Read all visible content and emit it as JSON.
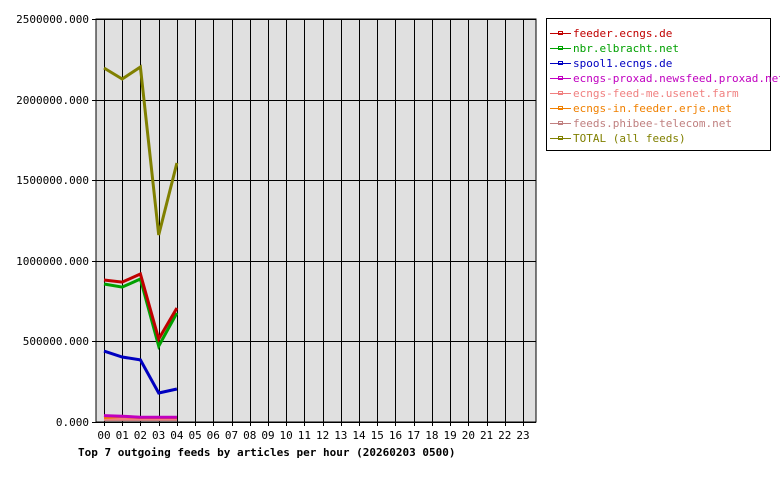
{
  "chart_data": {
    "type": "line",
    "title": "Top 7 outgoing feeds by articles per hour (20260203 0500)",
    "xlabel": "",
    "ylabel": "",
    "ylim": [
      0,
      2500000
    ],
    "grid": true,
    "legend_position": "right",
    "y_ticks": [
      "0.000",
      "500000.000",
      "1000000.000",
      "1500000.000",
      "2000000.000",
      "2500000.000"
    ],
    "y_tick_values": [
      0,
      500000,
      1000000,
      1500000,
      2000000,
      2500000
    ],
    "categories": [
      "00",
      "01",
      "02",
      "03",
      "04",
      "05",
      "06",
      "07",
      "08",
      "09",
      "10",
      "11",
      "12",
      "13",
      "14",
      "15",
      "16",
      "17",
      "18",
      "19",
      "20",
      "21",
      "22",
      "23"
    ],
    "series": [
      {
        "name": "feeder.ecngs.de",
        "color": "#c00000",
        "values": [
          881000,
          868000,
          918000,
          515000,
          707000
        ]
      },
      {
        "name": "nbr.elbracht.net",
        "color": "#00a000",
        "values": [
          856000,
          837000,
          887000,
          471000,
          676000
        ]
      },
      {
        "name": "spool1.ecngs.de",
        "color": "#0000c0",
        "values": [
          440000,
          403000,
          385000,
          180000,
          205000
        ]
      },
      {
        "name": "ecngs-proxad.newsfeed.proxad.net",
        "color": "#c000c0",
        "values": [
          40000,
          36000,
          30000,
          30000,
          30000
        ]
      },
      {
        "name": "ecngs-feed-me.usenet.farm",
        "color": "#f08080",
        "values": [
          20000,
          20000,
          20000,
          20000,
          20000
        ]
      },
      {
        "name": "ecngs-in.feeder.erje.net",
        "color": "#f08000",
        "values": [
          28000,
          35000,
          28000,
          28000,
          28000
        ]
      },
      {
        "name": "feeds.phibee-telecom.net",
        "color": "#c08080",
        "values": [
          15000,
          15000,
          15000,
          15000,
          15000
        ]
      },
      {
        "name": "TOTAL (all feeds)",
        "color": "#808000",
        "values": [
          2196000,
          2128000,
          2202000,
          1160000,
          1607000
        ]
      }
    ]
  },
  "colors": {
    "plot_background": "#e0e0e0",
    "grid": "#000000",
    "axis": "#000000"
  }
}
